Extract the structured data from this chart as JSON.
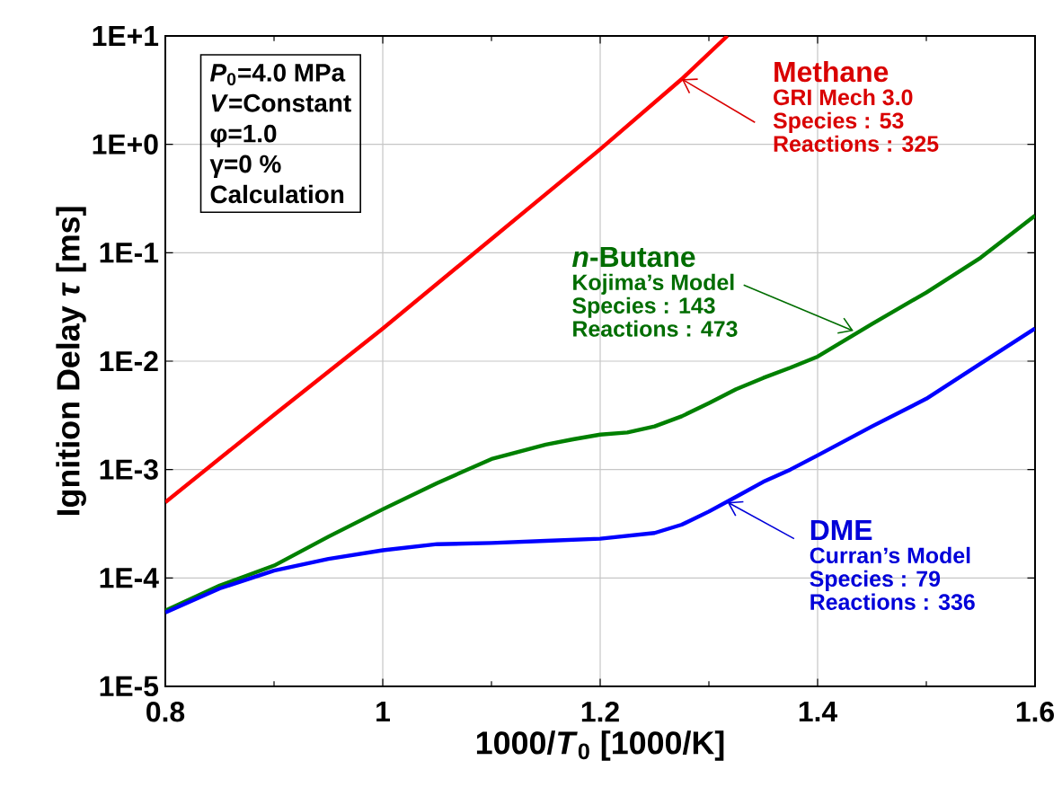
{
  "chart_data": {
    "type": "line",
    "xlabel": "1000/*T*$_{0}$  [1000/K]",
    "ylabel": "Ignition Delay *τ* [ms]",
    "xlim": [
      0.8,
      1.6
    ],
    "xticks": [
      0.8,
      1,
      1.2,
      1.4,
      1.6
    ],
    "ylim": [
      1e-05,
      10
    ],
    "yticks": [
      {
        "value": 1e-05,
        "label": "1E-5"
      },
      {
        "value": 0.0001,
        "label": "1E-4"
      },
      {
        "value": 0.001,
        "label": "1E-3"
      },
      {
        "value": 0.01,
        "label": "1E-2"
      },
      {
        "value": 0.1,
        "label": "1E-1"
      },
      {
        "value": 1,
        "label": "1E+0"
      },
      {
        "value": 10,
        "label": "1E+1"
      }
    ],
    "log": "y",
    "grid": true,
    "marker": "none",
    "line_style": "solid",
    "series": [
      {
        "name": "Methane",
        "color": "#ff0000",
        "x": [
          0.8,
          0.9,
          1.0,
          1.1,
          1.2,
          1.275,
          1.317
        ],
        "values": [
          0.0005,
          0.0032,
          0.02,
          0.134,
          0.9,
          4,
          10
        ]
      },
      {
        "name": "*n*-Butane",
        "color": "#008000",
        "x": [
          0.8,
          0.85,
          0.9,
          0.95,
          1.0,
          1.05,
          1.1,
          1.15,
          1.175,
          1.2,
          1.225,
          1.25,
          1.275,
          1.3,
          1.325,
          1.35,
          1.375,
          1.4,
          1.45,
          1.5,
          1.55,
          1.6
        ],
        "values": [
          5e-05,
          8.5e-05,
          0.00013,
          0.00024,
          0.00043,
          0.00075,
          0.00125,
          0.0017,
          0.0019,
          0.0021,
          0.0022,
          0.0025,
          0.0031,
          0.0041,
          0.0055,
          0.007,
          0.0087,
          0.011,
          0.022,
          0.043,
          0.09,
          0.22
        ]
      },
      {
        "name": "DME",
        "color": "#0000ff",
        "x": [
          0.8,
          0.85,
          0.9,
          0.95,
          1.0,
          1.05,
          1.1,
          1.15,
          1.2,
          1.25,
          1.275,
          1.3,
          1.325,
          1.35,
          1.375,
          1.4,
          1.45,
          1.5,
          1.55,
          1.6
        ],
        "values": [
          4.8e-05,
          8e-05,
          0.000117,
          0.00015,
          0.00018,
          0.000205,
          0.00021,
          0.00022,
          0.00023,
          0.00026,
          0.00031,
          0.00041,
          0.00056,
          0.00077,
          0.001,
          0.00135,
          0.0025,
          0.0045,
          0.0095,
          0.02
        ]
      }
    ],
    "annotations": [
      "*P*$_{0}$=4.0 MPa",
      "*V*=Constant",
      "φ=1.0",
      "γ=0 %",
      "Calculation",
      {
        "text": "GRI Mech 3.0",
        "x": 1.275,
        "y": 4
      },
      "Species : 53",
      "Reactions : 325",
      {
        "text": "Kojima’s Model",
        "x": 1.433,
        "y": 0.019
      },
      "Species : 143",
      "Reactions : 473",
      {
        "text": "Curran’s Model",
        "x": 1.317,
        "y": 0.0005
      },
      "Species : 79",
      "Reactions : 336"
    ]
  }
}
